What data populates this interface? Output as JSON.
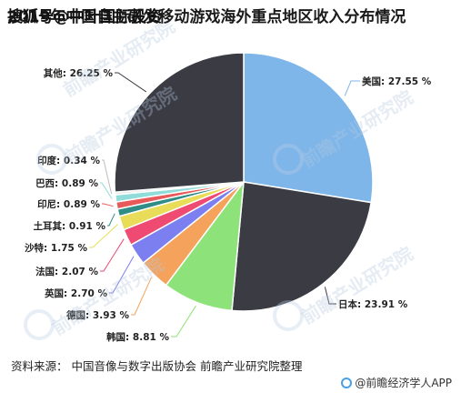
{
  "header": {
    "title": "2019年中国自主研发移动游戏海外重点地区收入分布情况",
    "overlay": "搜狐号@中叶国际投资"
  },
  "footer": {
    "source": "资料来源：  中国音像与数字出版协会 前瞻产业研究院整理",
    "brand": "@前瞻经济学人APP"
  },
  "watermark": "前瞻产业研究院",
  "chart_data": {
    "type": "pie",
    "title": "2019年中国自主研发移动游戏海外重点地区收入分布情况",
    "slices": [
      {
        "label": "美国",
        "value": 27.55,
        "text": "美国: 27.55 %",
        "color": "#7eb6ea"
      },
      {
        "label": "日本",
        "value": 23.91,
        "text": "日本: 23.91 %",
        "color": "#3b3b44"
      },
      {
        "label": "韩国",
        "value": 8.81,
        "text": "韩国: 8.81 %",
        "color": "#8ee27a"
      },
      {
        "label": "德国",
        "value": 3.93,
        "text": "德国: 3.93 %",
        "color": "#f4a25c"
      },
      {
        "label": "英国",
        "value": 2.7,
        "text": "英国: 2.70 %",
        "color": "#7b7ff0"
      },
      {
        "label": "法国",
        "value": 2.07,
        "text": "法国: 2.07 %",
        "color": "#ee4a72"
      },
      {
        "label": "沙特",
        "value": 1.75,
        "text": "沙特: 1.75 %",
        "color": "#e9dc58"
      },
      {
        "label": "土耳其",
        "value": 0.91,
        "text": "土耳其: 0.91 %",
        "color": "#2f8d86"
      },
      {
        "label": "印尼",
        "value": 0.89,
        "text": "印尼: 0.89 %",
        "color": "#e85a5a"
      },
      {
        "label": "巴西",
        "value": 0.89,
        "text": "巴西: 0.89 %",
        "color": "#90dcd8"
      },
      {
        "label": "印度",
        "value": 0.34,
        "text": "印度: 0.34 %",
        "color": "#e9e9e9"
      },
      {
        "label": "其他",
        "value": 26.25,
        "text": "其他: 26.25 %",
        "color": "#3b3b44"
      }
    ]
  }
}
